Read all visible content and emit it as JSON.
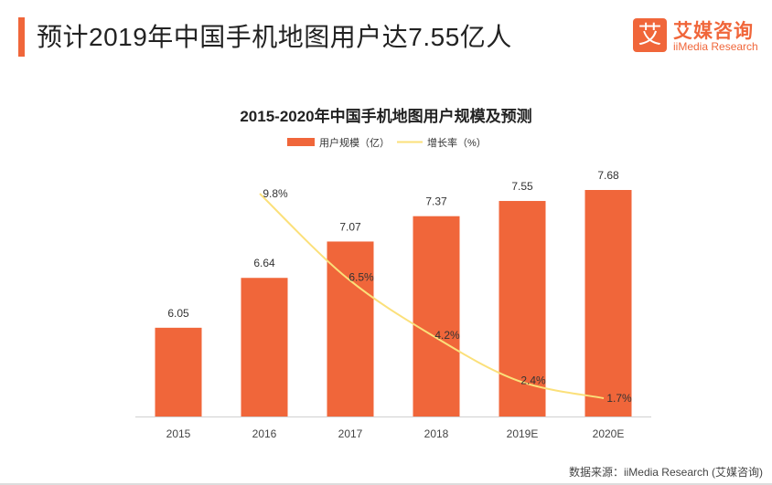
{
  "header": {
    "title": "预计2019年中国手机地图用户达7.55亿人",
    "brand_mark": "艾",
    "brand_cn": "艾媒咨询",
    "brand_en": "iiMedia Research"
  },
  "footer": {
    "source": "数据来源：iiMedia Research (艾媒咨询)"
  },
  "colors": {
    "bar": "#f0663a",
    "line": "#fbe07a",
    "accent": "#f0663a"
  },
  "chart_data": {
    "type": "bar",
    "title": "2015-2020年中国手机地图用户规模及预测",
    "categories": [
      "2015",
      "2016",
      "2017",
      "2018",
      "2019E",
      "2020E"
    ],
    "legend_position": "top",
    "grid": false,
    "series": [
      {
        "name": "用户规模（亿）",
        "type": "bar",
        "values": [
          6.05,
          6.64,
          7.07,
          7.37,
          7.55,
          7.68
        ],
        "labels": [
          "6.05",
          "6.64",
          "7.07",
          "7.37",
          "7.55",
          "7.68"
        ],
        "ylim": [
          5,
          8
        ]
      },
      {
        "name": "增长率（%）",
        "type": "line",
        "values": [
          null,
          9.8,
          6.5,
          4.2,
          2.4,
          1.7
        ],
        "labels": [
          "",
          "9.8%",
          "6.5%",
          "4.2%",
          "2.4%",
          "1.7%"
        ],
        "ylim": [
          0,
          11
        ]
      }
    ]
  }
}
